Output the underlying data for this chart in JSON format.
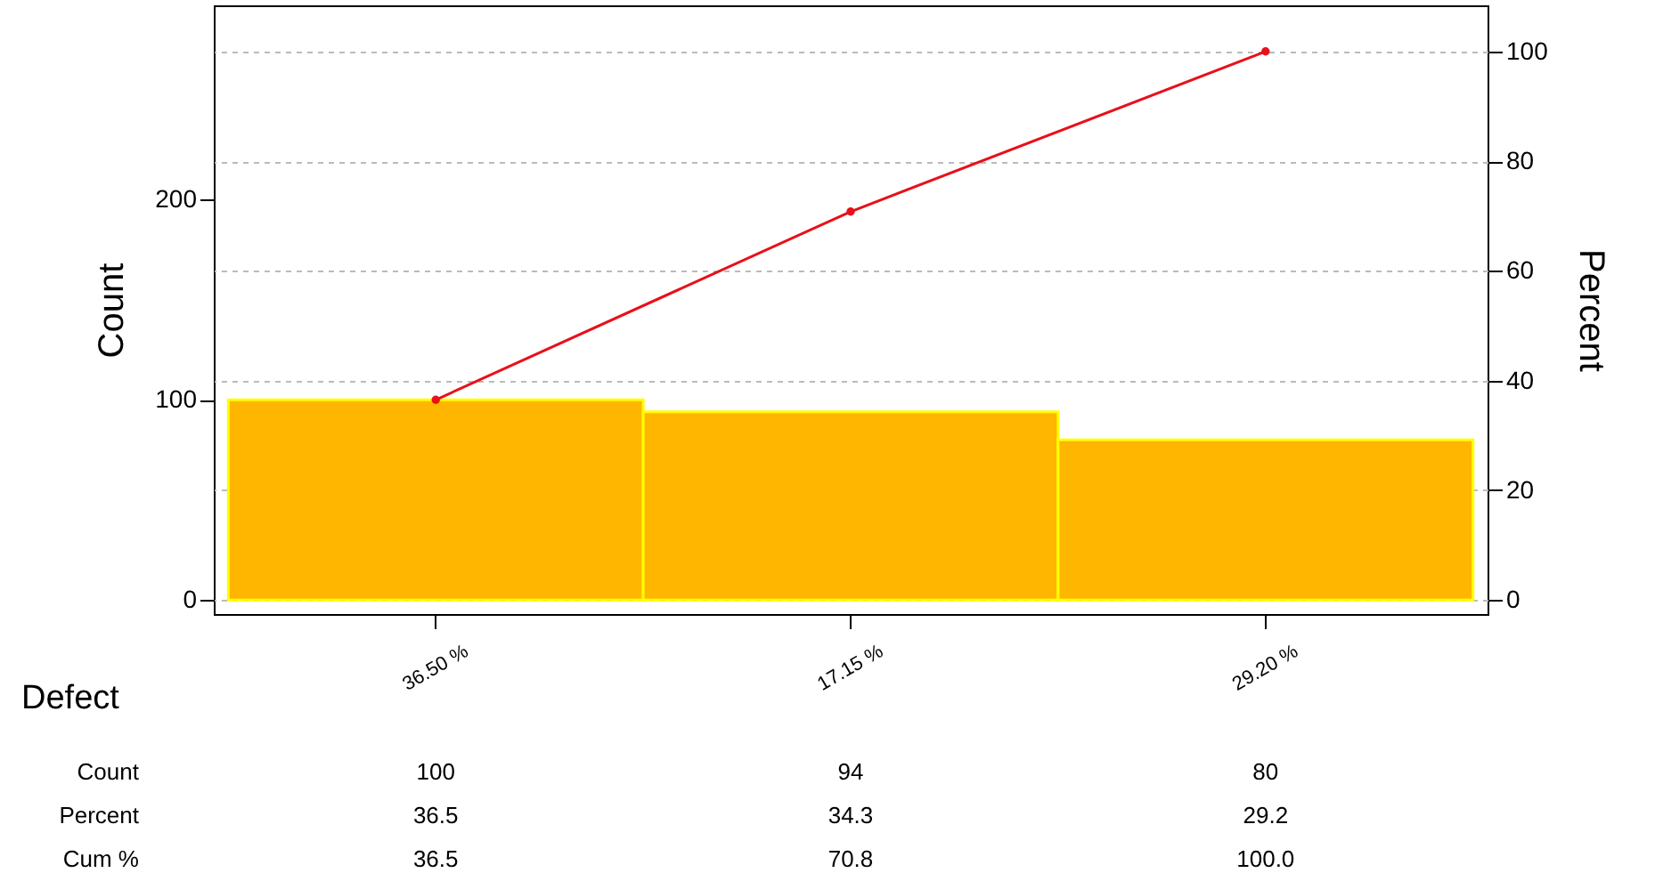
{
  "chart_data": {
    "type": "bar",
    "xlabel": "Defect",
    "ylabel": "Count",
    "y2label": "Percent",
    "categories": [
      "36.50 %",
      "17.15 %",
      "29.20 %"
    ],
    "series": [
      {
        "color": "#ffb600",
        "values": [
          100,
          94,
          80
        ],
        "value_labels": [
          "100",
          "94",
          "80"
        ]
      },
      {
        "type": "line",
        "axis": "y2",
        "color": "#e8101a",
        "values": [
          36.5,
          70.8,
          100.0
        ],
        "value_labels": [
          "36.5",
          "70.8",
          "100.0"
        ]
      }
    ],
    "annotations": [
      "Count",
      "Percent",
      "Cum %",
      "36.5",
      "34.3",
      "29.2"
    ],
    "ylim": [
      -7,
      297
    ],
    "yticks": [
      0,
      100,
      200
    ],
    "y2lim": [
      -2.55,
      108.4
    ],
    "y2ticks": [
      0,
      20,
      40,
      60,
      80,
      100
    ],
    "grid": true,
    "marker": "circle",
    "line_style": "solid"
  }
}
